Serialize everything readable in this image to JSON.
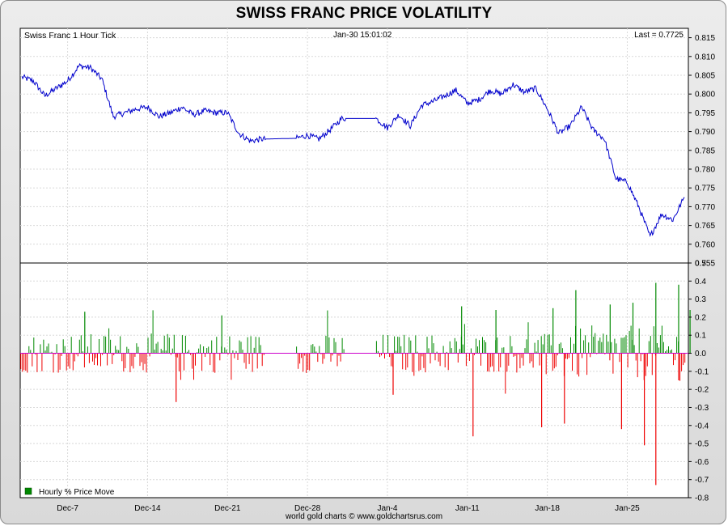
{
  "title": "SWISS FRANC PRICE VOLATILITY",
  "footer": "world gold charts © www.goldchartsrus.com",
  "colors": {
    "line": "#0000cc",
    "up": "#008800",
    "down": "#ee0000",
    "zero": "#cc00cc"
  },
  "chart_data": [
    {
      "type": "line",
      "name": "Swiss Franc 1 Hour Tick",
      "timestamp": "Jan-30  15:01:02",
      "last_label": "Last = 0.7725",
      "ylim": [
        0.755,
        0.8175
      ],
      "yticks": [
        "0.815",
        "0.810",
        "0.805",
        "0.800",
        "0.795",
        "0.790",
        "0.785",
        "0.780",
        "0.775",
        "0.770",
        "0.765",
        "0.760",
        "0.755"
      ],
      "xticks": [
        "Dec-7",
        "Dec-14",
        "Dec-21",
        "Dec-28",
        "Jan-4",
        "Jan-11",
        "Jan-18",
        "Jan-25"
      ],
      "points": [
        [
          "Dec-3",
          0.8045
        ],
        [
          "Dec-4",
          0.8035
        ],
        [
          "Dec-5",
          0.7995
        ],
        [
          "Dec-6",
          0.8015
        ],
        [
          "Dec-7",
          0.8035
        ],
        [
          "Dec-8",
          0.8075
        ],
        [
          "Dec-9",
          0.807
        ],
        [
          "Dec-10",
          0.804
        ],
        [
          "Dec-11",
          0.794
        ],
        [
          "Dec-12",
          0.795
        ],
        [
          "Dec-13",
          0.796
        ],
        [
          "Dec-14",
          0.7965
        ],
        [
          "Dec-15",
          0.794
        ],
        [
          "Dec-16",
          0.795
        ],
        [
          "Dec-17",
          0.7965
        ],
        [
          "Dec-18",
          0.7945
        ],
        [
          "Dec-19",
          0.7955
        ],
        [
          "Dec-20",
          0.795
        ],
        [
          "Dec-21",
          0.795
        ],
        [
          "Dec-22",
          0.7895
        ],
        [
          "Dec-23",
          0.7875
        ],
        [
          "Dec-24",
          0.788
        ],
        [
          "Dec-27",
          0.7882
        ],
        [
          "Dec-28",
          0.789
        ],
        [
          "Dec-29",
          0.788
        ],
        [
          "Dec-30",
          0.7905
        ],
        [
          "Dec-31",
          0.7935
        ],
        [
          "Jan-3",
          0.7935
        ],
        [
          "Jan-4",
          0.791
        ],
        [
          "Jan-5",
          0.7945
        ],
        [
          "Jan-6",
          0.7915
        ],
        [
          "Jan-7",
          0.797
        ],
        [
          "Jan-8",
          0.798
        ],
        [
          "Jan-9",
          0.7995
        ],
        [
          "Jan-10",
          0.801
        ],
        [
          "Jan-11",
          0.7975
        ],
        [
          "Jan-12",
          0.7985
        ],
        [
          "Jan-13",
          0.801
        ],
        [
          "Jan-14",
          0.8
        ],
        [
          "Jan-15",
          0.8025
        ],
        [
          "Jan-16",
          0.8005
        ],
        [
          "Jan-17",
          0.8015
        ],
        [
          "Jan-18",
          0.796
        ],
        [
          "Jan-19",
          0.7895
        ],
        [
          "Jan-20",
          0.7915
        ],
        [
          "Jan-21",
          0.7965
        ],
        [
          "Jan-22",
          0.7905
        ],
        [
          "Jan-23",
          0.788
        ],
        [
          "Jan-24",
          0.7775
        ],
        [
          "Jan-25",
          0.7765
        ],
        [
          "Jan-26",
          0.77
        ],
        [
          "Jan-27",
          0.762
        ],
        [
          "Jan-28",
          0.768
        ],
        [
          "Jan-29",
          0.7665
        ],
        [
          "Jan-30",
          0.7725
        ]
      ]
    },
    {
      "type": "bar",
      "legend": "Hourly % Price Move",
      "legend_position": "bottom-left",
      "ylim": [
        -0.8,
        0.5
      ],
      "yticks": [
        "0.5",
        "0.4",
        "0.3",
        "0.2",
        "0.1",
        "0.0",
        "-0.1",
        "-0.2",
        "-0.3",
        "-0.4",
        "-0.5",
        "-0.6",
        "-0.7",
        "-0.8"
      ],
      "notable_moves": [
        [
          "Dec-8",
          0.23
        ],
        [
          "Dec-16",
          -0.27
        ],
        [
          "Dec-20",
          0.21
        ],
        [
          "Jan-4",
          -0.23
        ],
        [
          "Jan-10",
          0.26
        ],
        [
          "Jan-11",
          -0.46
        ],
        [
          "Jan-13",
          0.24
        ],
        [
          "Jan-17",
          -0.41
        ],
        [
          "Jan-18",
          0.25
        ],
        [
          "Jan-19",
          -0.39
        ],
        [
          "Jan-20",
          0.35
        ],
        [
          "Jan-23",
          0.27
        ],
        [
          "Jan-24",
          -0.42
        ],
        [
          "Jan-25",
          0.28
        ],
        [
          "Jan-26",
          -0.51
        ],
        [
          "Jan-27",
          -0.73
        ],
        [
          "Jan-27",
          0.39
        ],
        [
          "Jan-29",
          0.38
        ],
        [
          "Jan-29",
          -0.15
        ],
        [
          "Jan-30",
          0.24
        ]
      ]
    }
  ]
}
